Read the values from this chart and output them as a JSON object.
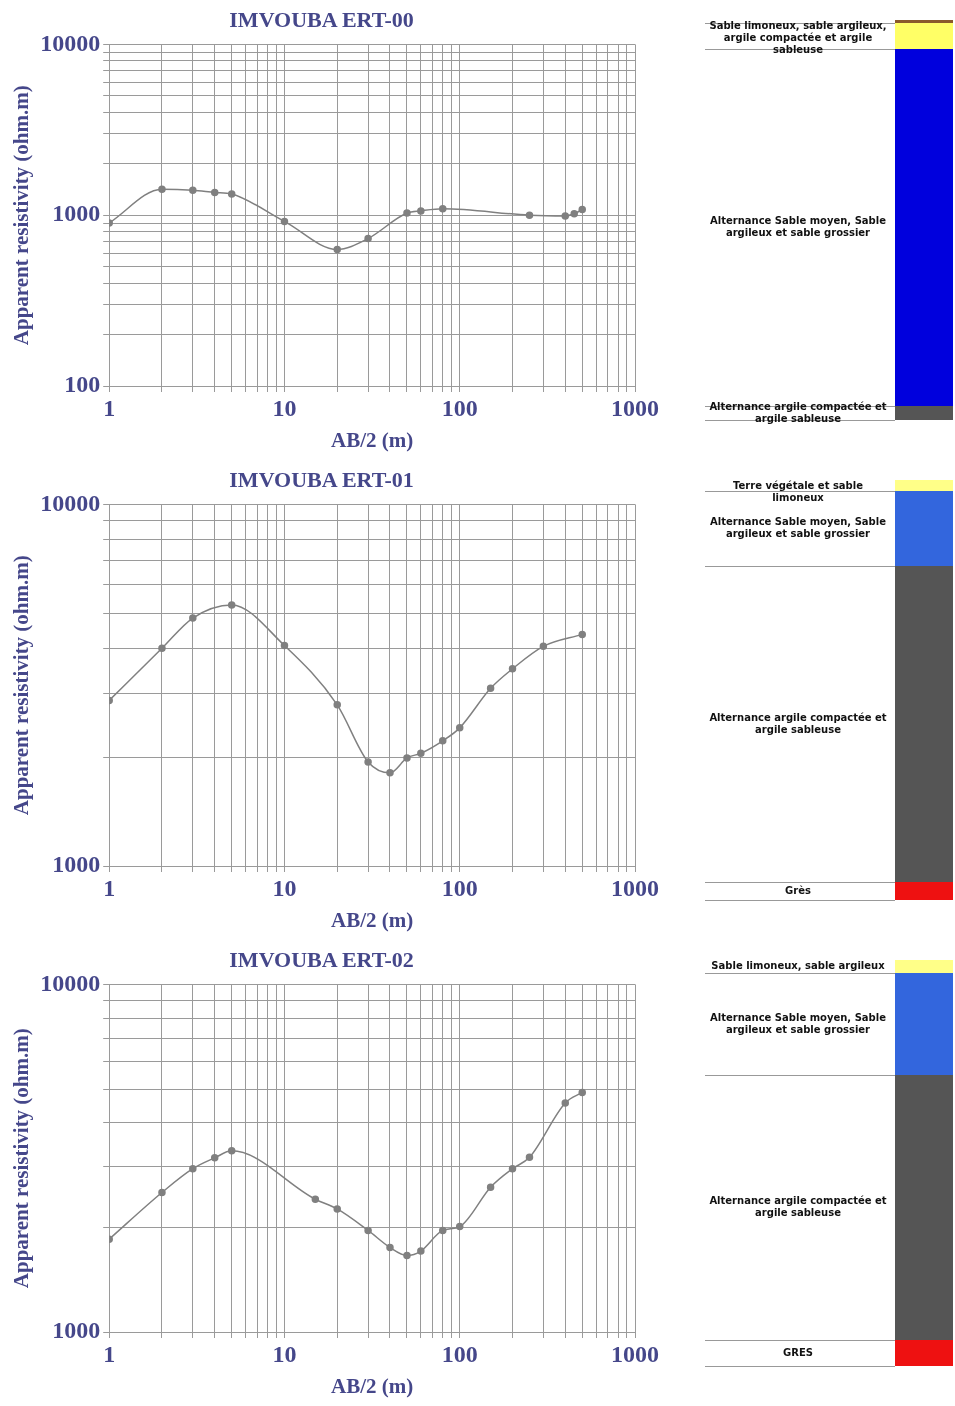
{
  "chart_data": [
    {
      "type": "line",
      "title": "IMVOUBA ERT-00",
      "xlabel": "AB/2 (m)",
      "ylabel": "Apparent resistivity (ohm.m)",
      "log": "xy",
      "grid": true,
      "marker": "circle",
      "line_style": "solid",
      "x": [
        1,
        2,
        3,
        4,
        5,
        10,
        20,
        30,
        50,
        60,
        80,
        250,
        400,
        450,
        500
      ],
      "series": [
        {
          "color": "#808080",
          "values": [
            900,
            1420,
            1400,
            1360,
            1330,
            920,
            630,
            730,
            1030,
            1060,
            1090,
            1000,
            990,
            1020,
            1080
          ]
        }
      ],
      "xlim": [
        1,
        1000
      ],
      "ylim": [
        100,
        10000
      ],
      "xticks": [
        1,
        {
          "value": 2,
          "label": null
        },
        {
          "value": 3,
          "label": null
        },
        {
          "value": 4,
          "label": null
        },
        {
          "value": 5,
          "label": null
        },
        {
          "value": 6,
          "label": null
        },
        {
          "value": 7,
          "label": null
        },
        {
          "value": 8,
          "label": null
        },
        {
          "value": 9,
          "label": null
        },
        10,
        {
          "value": 20,
          "label": null
        },
        {
          "value": 30,
          "label": null
        },
        {
          "value": 40,
          "label": null
        },
        {
          "value": 50,
          "label": null
        },
        {
          "value": 60,
          "label": null
        },
        {
          "value": 70,
          "label": null
        },
        {
          "value": 80,
          "label": null
        },
        {
          "value": 90,
          "label": null
        },
        100,
        {
          "value": 200,
          "label": null
        },
        {
          "value": 300,
          "label": null
        },
        {
          "value": 400,
          "label": null
        },
        {
          "value": 500,
          "label": null
        },
        {
          "value": 600,
          "label": null
        },
        {
          "value": 700,
          "label": null
        },
        {
          "value": 800,
          "label": null
        },
        {
          "value": 900,
          "label": null
        },
        1000
      ],
      "yticks": [
        100,
        {
          "value": 200,
          "label": null
        },
        {
          "value": 300,
          "label": null
        },
        {
          "value": 400,
          "label": null
        },
        {
          "value": 500,
          "label": null
        },
        {
          "value": 600,
          "label": null
        },
        {
          "value": 700,
          "label": null
        },
        {
          "value": 800,
          "label": null
        },
        {
          "value": 900,
          "label": null
        },
        1000,
        {
          "value": 2000,
          "label": null
        },
        {
          "value": 3000,
          "label": null
        },
        {
          "value": 4000,
          "label": null
        },
        {
          "value": 5000,
          "label": null
        },
        {
          "value": 6000,
          "label": null
        },
        {
          "value": 7000,
          "label": null
        },
        {
          "value": 8000,
          "label": null
        },
        {
          "value": 9000,
          "label": null
        },
        10000
      ]
    },
    {
      "type": "other",
      "annotations": [
        "Sable limoneux, sable argileux, argile compactée et argile sableuse",
        "Alternance Sable moyen, Sable argileux et sable grossier",
        "Alternance argile compactée et argile sableuse"
      ]
    },
    {
      "type": "line",
      "title": "IMVOUBA ERT-01",
      "xlabel": "AB/2 (m)",
      "ylabel": "Apparent resistivity (ohm.m)",
      "log": "xy",
      "grid": true,
      "marker": "circle",
      "line_style": "solid",
      "x": [
        1,
        2,
        3,
        5,
        10,
        20,
        30,
        40,
        50,
        60,
        80,
        100,
        150,
        200,
        300,
        500
      ],
      "series": [
        {
          "color": "#808080",
          "values": [
            2870,
            4000,
            4850,
            5270,
            4070,
            2790,
            1940,
            1810,
            1990,
            2050,
            2220,
            2410,
            3100,
            3510,
            4050,
            4370
          ]
        }
      ],
      "xlim": [
        1,
        1000
      ],
      "ylim": [
        1000,
        10000
      ],
      "xticks": [
        1,
        {
          "value": 2,
          "label": null
        },
        {
          "value": 3,
          "label": null
        },
        {
          "value": 4,
          "label": null
        },
        {
          "value": 5,
          "label": null
        },
        {
          "value": 6,
          "label": null
        },
        {
          "value": 7,
          "label": null
        },
        {
          "value": 8,
          "label": null
        },
        {
          "value": 9,
          "label": null
        },
        10,
        {
          "value": 20,
          "label": null
        },
        {
          "value": 30,
          "label": null
        },
        {
          "value": 40,
          "label": null
        },
        {
          "value": 50,
          "label": null
        },
        {
          "value": 60,
          "label": null
        },
        {
          "value": 70,
          "label": null
        },
        {
          "value": 80,
          "label": null
        },
        {
          "value": 90,
          "label": null
        },
        100,
        {
          "value": 200,
          "label": null
        },
        {
          "value": 300,
          "label": null
        },
        {
          "value": 400,
          "label": null
        },
        {
          "value": 500,
          "label": null
        },
        {
          "value": 600,
          "label": null
        },
        {
          "value": 700,
          "label": null
        },
        {
          "value": 800,
          "label": null
        },
        {
          "value": 900,
          "label": null
        },
        1000
      ],
      "yticks": [
        1000,
        {
          "value": 2000,
          "label": null
        },
        {
          "value": 3000,
          "label": null
        },
        {
          "value": 4000,
          "label": null
        },
        {
          "value": 5000,
          "label": null
        },
        {
          "value": 6000,
          "label": null
        },
        {
          "value": 7000,
          "label": null
        },
        {
          "value": 8000,
          "label": null
        },
        {
          "value": 9000,
          "label": null
        },
        10000
      ]
    },
    {
      "type": "other",
      "annotations": [
        "Terre végétale et sable limoneux",
        "Alternance Sable moyen, Sable argileux et sable grossier",
        "Alternance argile compactée et argile sableuse",
        "Grès"
      ]
    },
    {
      "type": "line",
      "title": "IMVOUBA ERT-02",
      "xlabel": "AB/2 (m)",
      "ylabel": "Apparent resistivity (ohm.m)",
      "log": "xy",
      "grid": true,
      "marker": "circle",
      "line_style": "solid",
      "x": [
        1,
        2,
        3,
        4,
        5,
        15,
        20,
        30,
        40,
        50,
        60,
        80,
        100,
        150,
        200,
        250,
        400,
        500
      ],
      "series": [
        {
          "color": "#808080",
          "values": [
            1850,
            2520,
            2950,
            3170,
            3320,
            2410,
            2260,
            1960,
            1750,
            1660,
            1710,
            1960,
            2010,
            2610,
            2950,
            3180,
            4560,
            4890
          ]
        }
      ],
      "xlim": [
        1,
        1000
      ],
      "ylim": [
        1000,
        10000
      ],
      "xticks": [
        1,
        {
          "value": 2,
          "label": null
        },
        {
          "value": 3,
          "label": null
        },
        {
          "value": 4,
          "label": null
        },
        {
          "value": 5,
          "label": null
        },
        {
          "value": 6,
          "label": null
        },
        {
          "value": 7,
          "label": null
        },
        {
          "value": 8,
          "label": null
        },
        {
          "value": 9,
          "label": null
        },
        10,
        {
          "value": 20,
          "label": null
        },
        {
          "value": 30,
          "label": null
        },
        {
          "value": 40,
          "label": null
        },
        {
          "value": 50,
          "label": null
        },
        {
          "value": 60,
          "label": null
        },
        {
          "value": 70,
          "label": null
        },
        {
          "value": 80,
          "label": null
        },
        {
          "value": 90,
          "label": null
        },
        100,
        {
          "value": 200,
          "label": null
        },
        {
          "value": 300,
          "label": null
        },
        {
          "value": 400,
          "label": null
        },
        {
          "value": 500,
          "label": null
        },
        {
          "value": 600,
          "label": null
        },
        {
          "value": 700,
          "label": null
        },
        {
          "value": 800,
          "label": null
        },
        {
          "value": 900,
          "label": null
        },
        1000
      ],
      "yticks": [
        1000,
        {
          "value": 2000,
          "label": null
        },
        {
          "value": 3000,
          "label": null
        },
        {
          "value": 4000,
          "label": null
        },
        {
          "value": 5000,
          "label": null
        },
        {
          "value": 6000,
          "label": null
        },
        {
          "value": 7000,
          "label": null
        },
        {
          "value": 8000,
          "label": null
        },
        {
          "value": 9000,
          "label": null
        },
        10000
      ]
    },
    {
      "type": "other",
      "annotations": [
        "Sable limoneux, sable argileux",
        "Alternance Sable moyen, Sable argileux et sable grossier",
        "Alternance argile compactée et argile sableuse",
        "GRES"
      ]
    }
  ]
}
